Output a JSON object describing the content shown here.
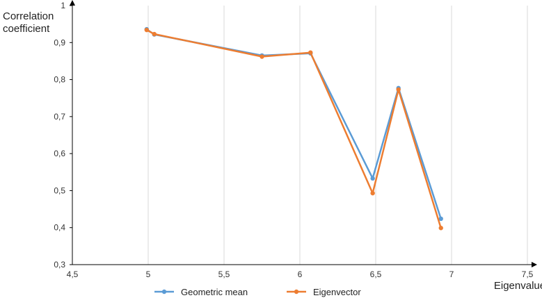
{
  "chart_data": {
    "type": "line",
    "title": "",
    "xlabel": "Eigenvalue",
    "ylabel": [
      "Correlation",
      "coefficient"
    ],
    "xlim": [
      4.5,
      7.5
    ],
    "ylim": [
      0.3,
      1.0
    ],
    "x_ticks": [
      4.5,
      5.0,
      5.5,
      6.0,
      6.5,
      7.0,
      7.5
    ],
    "x_tick_labels": [
      "4,5",
      "5",
      "5,5",
      "6",
      "6,5",
      "7",
      "7,5"
    ],
    "y_ticks": [
      0.3,
      0.4,
      0.5,
      0.6,
      0.7,
      0.8,
      0.9,
      1.0
    ],
    "y_tick_labels": [
      "0,3",
      "0,4",
      "0,5",
      "0,6",
      "0,7",
      "0,8",
      "0,9",
      "1"
    ],
    "grid": "vertical",
    "legend_position": "bottom",
    "series": [
      {
        "name": "Geometric mean",
        "color": "#5b9bd5",
        "points": [
          [
            4.99,
            0.936
          ],
          [
            5.04,
            0.922
          ],
          [
            5.75,
            0.865
          ],
          [
            6.07,
            0.871
          ],
          [
            6.48,
            0.533
          ],
          [
            6.65,
            0.777
          ],
          [
            6.93,
            0.424
          ]
        ]
      },
      {
        "name": "Eigenvector",
        "color": "#ed7d31",
        "points": [
          [
            4.99,
            0.934
          ],
          [
            5.04,
            0.923
          ],
          [
            5.75,
            0.862
          ],
          [
            6.07,
            0.873
          ],
          [
            6.48,
            0.493
          ],
          [
            6.65,
            0.773
          ],
          [
            6.93,
            0.399
          ]
        ]
      }
    ]
  }
}
